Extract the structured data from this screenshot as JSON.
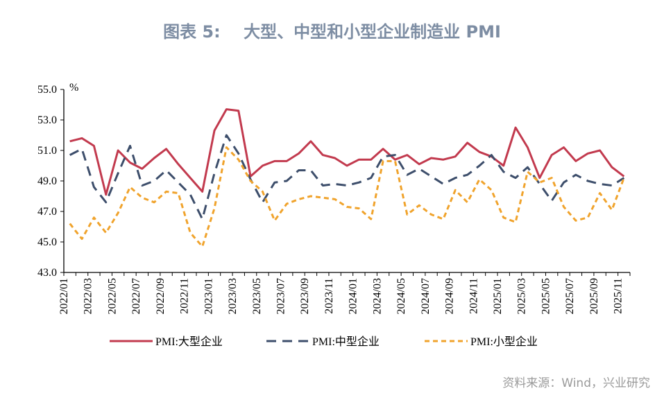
{
  "title": "图表 5:    大型、中型和小型企业制造业 PMI",
  "source": "资料来源：Wind，兴业研究",
  "chart_data": {
    "type": "line",
    "title": "大型、中型和小型企业制造业 PMI",
    "ylabel": "%",
    "ylim": [
      43.0,
      55.0
    ],
    "yticks": [
      "55.0",
      "53.0",
      "51.0",
      "49.0",
      "47.0",
      "45.0",
      "43.0"
    ],
    "grid": false,
    "legend_position": "bottom",
    "categories": [
      "2022/01",
      "2022/02",
      "2022/03",
      "2022/04",
      "2022/05",
      "2022/06",
      "2022/07",
      "2022/08",
      "2022/09",
      "2022/10",
      "2022/11",
      "2022/12",
      "2023/01",
      "2023/02",
      "2023/03",
      "2023/04",
      "2023/05",
      "2023/06",
      "2023/07",
      "2023/08",
      "2023/09",
      "2023/10",
      "2023/11",
      "2023/12",
      "2024/01",
      "2024/02",
      "2024/03",
      "2024/04",
      "2024/05",
      "2024/06",
      "2024/07",
      "2024/08",
      "2024/09",
      "2024/10",
      "2024/11",
      "2024/12",
      "2025/01",
      "2025/02",
      "2025/03",
      "2025/04",
      "2025/05",
      "2025/06",
      "2025/07",
      "2025/08",
      "2025/09",
      "2025/10",
      "2025/11"
    ],
    "series": [
      {
        "name": "PMI:大型企业",
        "color": "#c23a4e",
        "style": "solid",
        "values": [
          51.6,
          51.8,
          51.3,
          48.1,
          51.0,
          50.2,
          49.8,
          50.5,
          51.1,
          50.1,
          49.2,
          48.3,
          52.3,
          53.7,
          53.6,
          49.3,
          50.0,
          50.3,
          50.3,
          50.8,
          51.6,
          50.7,
          50.5,
          50.0,
          50.4,
          50.4,
          51.1,
          50.4,
          50.7,
          50.1,
          50.5,
          50.4,
          50.6,
          51.5,
          50.9,
          50.6,
          50.0,
          52.5,
          51.2,
          49.2,
          50.7,
          51.2,
          50.3,
          50.8,
          51.0,
          49.9,
          49.3
        ]
      },
      {
        "name": "PMI:中型企业",
        "color": "#3d4e6b",
        "style": "dashed",
        "values": [
          50.7,
          51.1,
          48.6,
          47.6,
          49.5,
          51.3,
          48.7,
          49.0,
          49.7,
          48.9,
          48.1,
          46.5,
          49.5,
          52.0,
          50.8,
          49.1,
          47.6,
          48.9,
          49.0,
          49.7,
          49.7,
          48.7,
          48.8,
          48.7,
          48.9,
          49.2,
          50.6,
          50.7,
          49.4,
          49.8,
          49.3,
          48.8,
          49.2,
          49.4,
          50.0,
          50.7,
          49.6,
          49.2,
          49.9,
          48.8,
          47.7,
          48.9,
          49.4,
          49.0,
          48.8,
          48.7,
          49.2
        ]
      },
      {
        "name": "PMI:小型企业",
        "color": "#f0a32c",
        "style": "short-dashed",
        "values": [
          46.2,
          45.2,
          46.6,
          45.6,
          46.9,
          48.6,
          47.9,
          47.6,
          48.3,
          48.2,
          45.6,
          44.7,
          47.2,
          51.2,
          50.4,
          49.0,
          48.3,
          46.4,
          47.5,
          47.8,
          48.0,
          47.9,
          47.8,
          47.3,
          47.2,
          46.5,
          50.3,
          50.3,
          46.8,
          47.4,
          46.8,
          46.5,
          48.4,
          47.6,
          49.1,
          48.4,
          46.6,
          46.3,
          49.6,
          48.9,
          49.2,
          47.3,
          46.4,
          46.6,
          48.2,
          47.1,
          49.2
        ]
      }
    ]
  }
}
